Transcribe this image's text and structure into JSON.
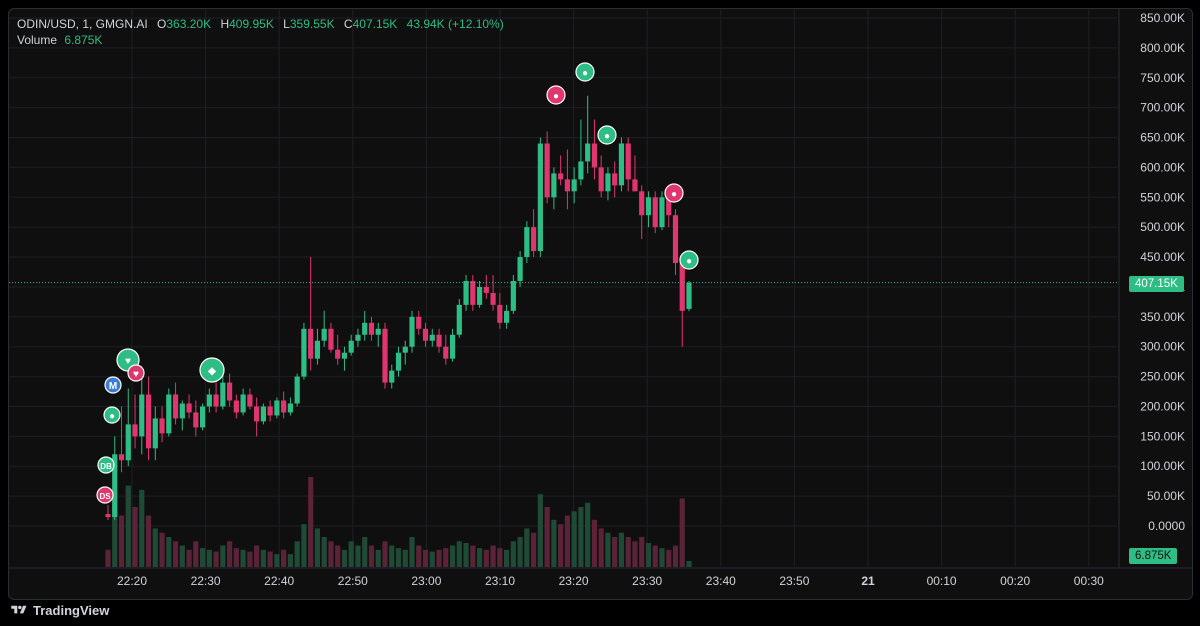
{
  "legend": {
    "symbol": "ODIN/USD, 1, GMGN.AI",
    "open_label": "O",
    "open": "363.20K",
    "high_label": "H",
    "high": "409.95K",
    "low_label": "L",
    "low": "359.55K",
    "close_label": "C",
    "close": "407.15K",
    "change": "43.94K (+12.10%)",
    "volume_label": "Volume",
    "volume": "6.875K"
  },
  "price_label": "407.15K",
  "volume_label_tag": "6.875K",
  "footer": {
    "brand": "TradingView",
    "icon": "tradingview-logo-icon"
  },
  "colors": {
    "up": "#2ebd85",
    "down": "#e0366f",
    "background": "#0f0f0f",
    "grid": "#1c1f26"
  },
  "chart_data": {
    "type": "candlestick",
    "y_ticks": [
      "850.00K",
      "800.00K",
      "750.00K",
      "700.00K",
      "650.00K",
      "600.00K",
      "550.00K",
      "500.00K",
      "450.00K",
      "400.00K",
      "350.00K",
      "300.00K",
      "250.00K",
      "200.00K",
      "150.00K",
      "100.00K",
      "50.00K",
      "0.0000"
    ],
    "ylim": [
      0,
      850000
    ],
    "x_ticks": [
      "22:20",
      "22:30",
      "22:40",
      "22:50",
      "23:00",
      "23:10",
      "23:20",
      "23:30",
      "23:40",
      "23:50",
      "21",
      "00:10",
      "00:20",
      "00:30"
    ],
    "last_price": 407150,
    "candles": [
      [
        20000,
        35000,
        10000,
        15000,
        20
      ],
      [
        15000,
        150000,
        10000,
        120000,
        80
      ],
      [
        120000,
        200000,
        90000,
        110000,
        60
      ],
      [
        110000,
        230000,
        100000,
        170000,
        95
      ],
      [
        170000,
        220000,
        130000,
        150000,
        70
      ],
      [
        150000,
        260000,
        120000,
        220000,
        90
      ],
      [
        220000,
        250000,
        110000,
        130000,
        60
      ],
      [
        130000,
        200000,
        110000,
        180000,
        45
      ],
      [
        180000,
        200000,
        140000,
        155000,
        40
      ],
      [
        155000,
        230000,
        150000,
        220000,
        35
      ],
      [
        220000,
        240000,
        170000,
        180000,
        30
      ],
      [
        180000,
        210000,
        160000,
        205000,
        25
      ],
      [
        205000,
        220000,
        180000,
        190000,
        20
      ],
      [
        190000,
        210000,
        150000,
        165000,
        30
      ],
      [
        165000,
        205000,
        160000,
        200000,
        22
      ],
      [
        200000,
        230000,
        190000,
        220000,
        20
      ],
      [
        220000,
        240000,
        190000,
        200000,
        18
      ],
      [
        200000,
        260000,
        195000,
        240000,
        25
      ],
      [
        240000,
        255000,
        200000,
        210000,
        30
      ],
      [
        210000,
        220000,
        180000,
        190000,
        22
      ],
      [
        190000,
        230000,
        185000,
        220000,
        20
      ],
      [
        220000,
        230000,
        195000,
        200000,
        18
      ],
      [
        200000,
        215000,
        150000,
        175000,
        25
      ],
      [
        175000,
        205000,
        170000,
        200000,
        20
      ],
      [
        200000,
        210000,
        175000,
        185000,
        18
      ],
      [
        185000,
        215000,
        180000,
        210000,
        15
      ],
      [
        210000,
        225000,
        180000,
        190000,
        20
      ],
      [
        190000,
        215000,
        185000,
        205000,
        15
      ],
      [
        205000,
        255000,
        200000,
        250000,
        30
      ],
      [
        250000,
        340000,
        245000,
        330000,
        50
      ],
      [
        330000,
        450000,
        260000,
        280000,
        105
      ],
      [
        280000,
        330000,
        270000,
        310000,
        45
      ],
      [
        310000,
        360000,
        300000,
        330000,
        35
      ],
      [
        330000,
        340000,
        290000,
        295000,
        30
      ],
      [
        295000,
        320000,
        270000,
        280000,
        25
      ],
      [
        280000,
        300000,
        260000,
        290000,
        20
      ],
      [
        290000,
        320000,
        285000,
        310000,
        30
      ],
      [
        310000,
        330000,
        300000,
        320000,
        25
      ],
      [
        320000,
        360000,
        310000,
        340000,
        35
      ],
      [
        340000,
        350000,
        310000,
        320000,
        25
      ],
      [
        320000,
        340000,
        300000,
        330000,
        20
      ],
      [
        330000,
        340000,
        230000,
        240000,
        30
      ],
      [
        240000,
        270000,
        230000,
        260000,
        25
      ],
      [
        260000,
        300000,
        250000,
        290000,
        22
      ],
      [
        290000,
        310000,
        270000,
        300000,
        20
      ],
      [
        300000,
        360000,
        290000,
        350000,
        35
      ],
      [
        350000,
        360000,
        320000,
        330000,
        25
      ],
      [
        330000,
        340000,
        300000,
        310000,
        20
      ],
      [
        310000,
        330000,
        300000,
        320000,
        18
      ],
      [
        320000,
        330000,
        290000,
        300000,
        20
      ],
      [
        300000,
        320000,
        270000,
        280000,
        22
      ],
      [
        280000,
        330000,
        275000,
        320000,
        25
      ],
      [
        320000,
        380000,
        315000,
        370000,
        30
      ],
      [
        370000,
        420000,
        360000,
        410000,
        28
      ],
      [
        410000,
        420000,
        360000,
        370000,
        25
      ],
      [
        370000,
        410000,
        365000,
        400000,
        22
      ],
      [
        400000,
        420000,
        380000,
        390000,
        20
      ],
      [
        390000,
        420000,
        360000,
        370000,
        25
      ],
      [
        370000,
        390000,
        330000,
        340000,
        22
      ],
      [
        340000,
        370000,
        330000,
        360000,
        20
      ],
      [
        360000,
        420000,
        355000,
        410000,
        30
      ],
      [
        410000,
        460000,
        400000,
        450000,
        35
      ],
      [
        450000,
        510000,
        440000,
        500000,
        45
      ],
      [
        500000,
        530000,
        450000,
        460000,
        40
      ],
      [
        460000,
        650000,
        450000,
        640000,
        85
      ],
      [
        640000,
        660000,
        540000,
        550000,
        70
      ],
      [
        550000,
        600000,
        530000,
        590000,
        55
      ],
      [
        590000,
        620000,
        570000,
        580000,
        50
      ],
      [
        580000,
        630000,
        530000,
        560000,
        60
      ],
      [
        560000,
        600000,
        540000,
        580000,
        65
      ],
      [
        580000,
        680000,
        570000,
        610000,
        70
      ],
      [
        610000,
        720000,
        590000,
        640000,
        75
      ],
      [
        640000,
        680000,
        580000,
        600000,
        55
      ],
      [
        600000,
        620000,
        550000,
        560000,
        45
      ],
      [
        560000,
        600000,
        545000,
        590000,
        40
      ],
      [
        590000,
        610000,
        550000,
        570000,
        35
      ],
      [
        570000,
        650000,
        560000,
        640000,
        40
      ],
      [
        640000,
        650000,
        560000,
        580000,
        35
      ],
      [
        580000,
        620000,
        560000,
        560000,
        30
      ],
      [
        560000,
        570000,
        480000,
        520000,
        35
      ],
      [
        520000,
        560000,
        500000,
        550000,
        28
      ],
      [
        550000,
        560000,
        490000,
        500000,
        25
      ],
      [
        500000,
        560000,
        495000,
        550000,
        22
      ],
      [
        550000,
        560000,
        500000,
        520000,
        20
      ],
      [
        520000,
        530000,
        420000,
        440000,
        25
      ],
      [
        440000,
        450000,
        300000,
        360000,
        80
      ],
      [
        363200,
        409950,
        359550,
        407150,
        7
      ]
    ]
  }
}
